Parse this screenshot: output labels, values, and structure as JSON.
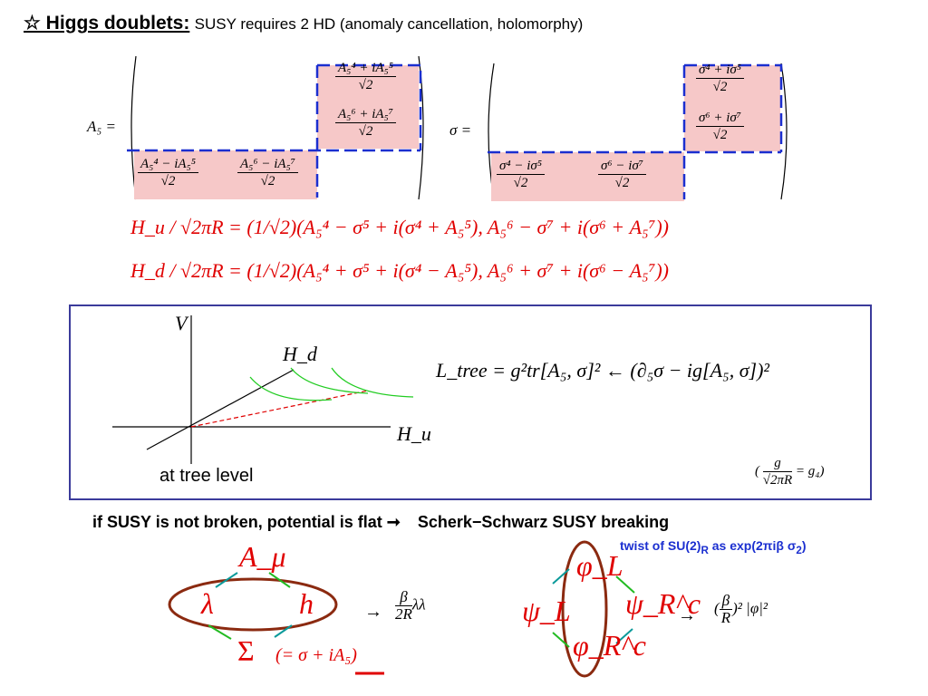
{
  "title": {
    "icon": "star-outline-icon",
    "lead": "☆ Higgs doublets:",
    "rest": "SUSY requires 2 HD (anomaly cancellation, holomorphy)"
  },
  "matrix_A5": {
    "lhs": "A₅ =",
    "upper_right": [
      {
        "num": "A₅⁴ + iA₅⁵",
        "den": "√2"
      },
      {
        "num": "A₅⁶ + iA₅⁷",
        "den": "√2"
      }
    ],
    "lower_left": [
      {
        "num": "A₅⁴ − iA₅⁵",
        "den": "√2"
      },
      {
        "num": "A₅⁶ − iA₅⁷",
        "den": "√2"
      }
    ]
  },
  "matrix_sigma": {
    "lhs": "σ =",
    "upper_right": [
      {
        "num": "σ⁴ + iσ⁵",
        "den": "√2"
      },
      {
        "num": "σ⁶ + iσ⁷",
        "den": "√2"
      }
    ],
    "lower_left": [
      {
        "num": "σ⁴ − iσ⁵",
        "den": "√2"
      },
      {
        "num": "σ⁶ − iσ⁷",
        "den": "√2"
      }
    ]
  },
  "eq_Hu": "H_u / √2πR = (1/√2)(A₅⁴ − σ⁵ + i(σ⁴ + A₅⁵), A₅⁶ − σ⁷ + i(σ⁶ + A₅⁷))",
  "eq_Hd": "H_d / √2πR = (1/√2)(A₅⁴ + σ⁵ + i(σ⁴ − A₅⁵), A₅⁶ + σ⁷ + i(σ⁶ − A₅⁷))",
  "potential_box": {
    "axis_v": "V",
    "axis_hd": "H_d",
    "axis_hu": "H_u",
    "caption": "at tree level",
    "lagrangian": "L_tree = g²tr[A₅, σ]² ← (∂₅σ − ig[A₅, σ])²",
    "coupling": {
      "left": "(",
      "num": "g",
      "den": "√2πR",
      "right": "= g₄)"
    }
  },
  "flat_line": {
    "text": "if SUSY is not broken, potential is flat",
    "arrow": "➞",
    "right": "Scherk−Schwarz SUSY breaking"
  },
  "twist": {
    "pre": "twist of SU(2)",
    "sub": "R",
    "post": " as exp(2πiβ σ",
    "sub2": "2",
    "end": ")"
  },
  "left_diagram": {
    "top": "A_μ",
    "left": "λ",
    "right": "h",
    "bottom": "Σ",
    "bottom_note": "(= σ + iA₅)",
    "arrow": "→",
    "result_num": "β",
    "result_den": "2R",
    "result_tail": "λλ"
  },
  "right_diagram": {
    "top": "φ_L",
    "left": "ψ_L",
    "right": "ψ_R^c",
    "bottom": "φ_R^c",
    "arrow": "→",
    "result_num": "β",
    "result_den": "R",
    "result_tail": ")² |φ|²",
    "result_open": "("
  }
}
